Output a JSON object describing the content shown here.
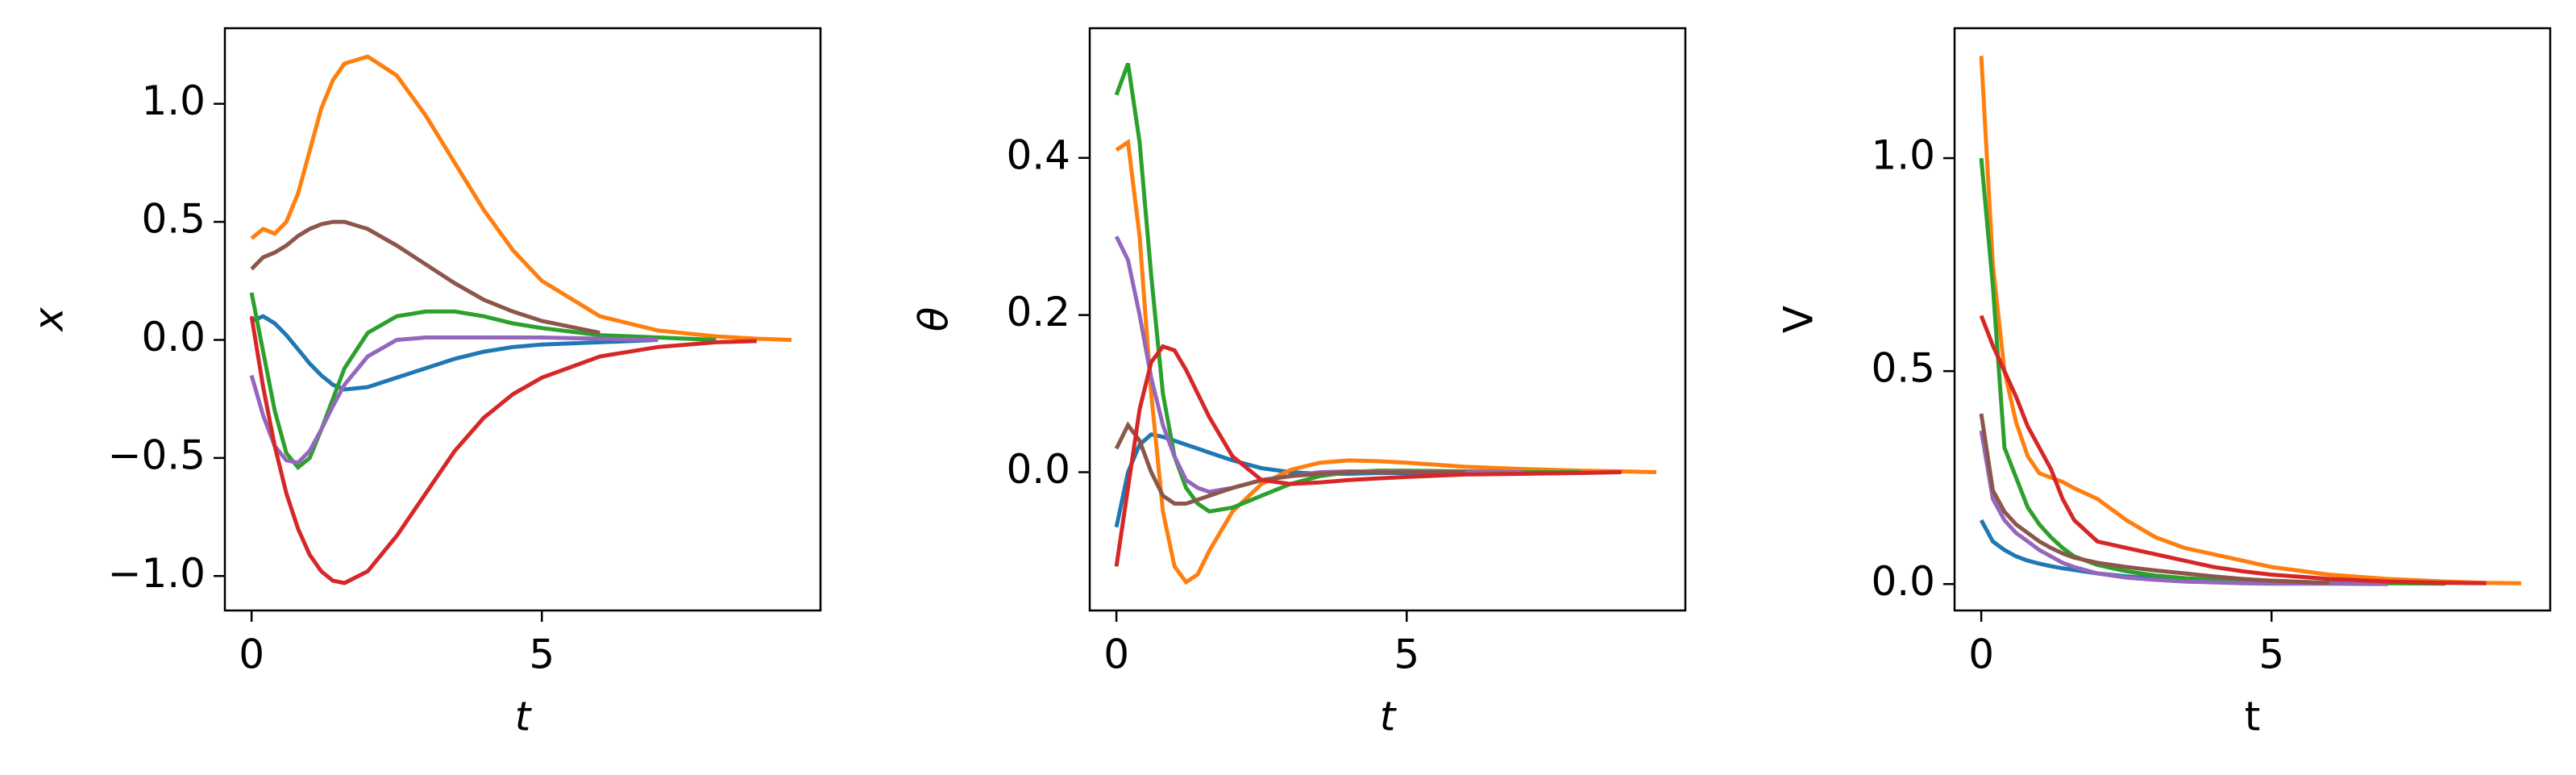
{
  "chart_data": [
    {
      "type": "line",
      "y_label": "x",
      "x_label": "t",
      "x": [
        0,
        0.2,
        0.4,
        0.6,
        0.8,
        1,
        1.2,
        1.4,
        1.6,
        2,
        2.5,
        3,
        3.5,
        4,
        4.5,
        5,
        6,
        7,
        8,
        8.7,
        9.3
      ],
      "xlim": [
        -0.46,
        9.8
      ],
      "xticks": [
        0,
        5
      ],
      "ylim": [
        -1.146,
        1.32
      ],
      "yticks": [
        {
          "value": -1.0,
          "label": "−1.0"
        },
        {
          "value": -0.5,
          "label": "−0.5"
        },
        {
          "value": 0.0,
          "label": "0.0"
        },
        {
          "value": 0.5,
          "label": "0.5"
        },
        {
          "value": 1.0,
          "label": "1.0"
        }
      ],
      "series": [
        {
          "color": "#1f77b4",
          "values": [
            0.08,
            0.1,
            0.07,
            0.02,
            -0.04,
            -0.1,
            -0.15,
            -0.19,
            -0.21,
            -0.2,
            -0.16,
            -0.12,
            -0.08,
            -0.05,
            -0.03,
            -0.02,
            -0.01,
            0,
            null,
            null,
            null
          ]
        },
        {
          "color": "#ff7f0e",
          "values": [
            0.43,
            0.47,
            0.45,
            0.5,
            0.62,
            0.8,
            0.98,
            1.1,
            1.17,
            1.2,
            1.12,
            0.95,
            0.75,
            0.55,
            0.38,
            0.25,
            0.1,
            0.04,
            0.015,
            0.005,
            0
          ]
        },
        {
          "color": "#2ca02c",
          "values": [
            0.2,
            -0.05,
            -0.3,
            -0.48,
            -0.54,
            -0.5,
            -0.38,
            -0.25,
            -0.12,
            0.03,
            0.1,
            0.12,
            0.12,
            0.1,
            0.07,
            0.05,
            0.02,
            0.01,
            0,
            null,
            null
          ]
        },
        {
          "color": "#9467bd",
          "values": [
            -0.15,
            -0.32,
            -0.45,
            -0.51,
            -0.52,
            -0.47,
            -0.38,
            -0.28,
            -0.19,
            -0.07,
            0,
            0.01,
            0.01,
            0.01,
            0.01,
            0.01,
            0.005,
            0,
            null,
            null,
            null
          ]
        },
        {
          "color": "#8c564b",
          "values": [
            0.3,
            0.35,
            0.37,
            0.4,
            0.44,
            0.47,
            0.49,
            0.5,
            0.5,
            0.47,
            0.4,
            0.32,
            0.24,
            0.17,
            0.12,
            0.08,
            0.03,
            null,
            null,
            null,
            null
          ]
        },
        {
          "color": "#d62728",
          "values": [
            0.1,
            -0.2,
            -0.45,
            -0.65,
            -0.8,
            -0.91,
            -0.98,
            -1.02,
            -1.03,
            -0.98,
            -0.83,
            -0.65,
            -0.47,
            -0.33,
            -0.23,
            -0.16,
            -0.07,
            -0.03,
            -0.01,
            -0.005,
            null
          ]
        }
      ]
    },
    {
      "type": "line",
      "y_label": "θ",
      "x_label": "t",
      "x": [
        0,
        0.2,
        0.4,
        0.6,
        0.8,
        1,
        1.2,
        1.4,
        1.6,
        2,
        2.5,
        3,
        3.5,
        4,
        4.5,
        5,
        6,
        7,
        8,
        8.7,
        9.3
      ],
      "xlim": [
        -0.46,
        9.8
      ],
      "xticks": [
        0,
        5
      ],
      "ylim": [
        -0.176,
        0.565
      ],
      "yticks": [
        {
          "value": 0.0,
          "label": "0.0"
        },
        {
          "value": 0.2,
          "label": "0.2"
        },
        {
          "value": 0.4,
          "label": "0.4"
        }
      ],
      "series": [
        {
          "color": "#1f77b4",
          "values": [
            -0.07,
            0,
            0.035,
            0.048,
            0.045,
            0.04,
            0.035,
            0.03,
            0.025,
            0.015,
            0.005,
            0,
            -0.002,
            -0.002,
            -0.001,
            -0.001,
            0,
            0,
            null,
            null,
            null
          ]
        },
        {
          "color": "#ff7f0e",
          "values": [
            0.41,
            0.42,
            0.3,
            0.1,
            -0.05,
            -0.12,
            -0.14,
            -0.13,
            -0.1,
            -0.05,
            -0.015,
            0.003,
            0.012,
            0.015,
            0.014,
            0.012,
            0.007,
            0.004,
            0.002,
            0.001,
            0
          ]
        },
        {
          "color": "#2ca02c",
          "values": [
            0.48,
            0.52,
            0.42,
            0.25,
            0.1,
            0.02,
            -0.02,
            -0.04,
            -0.05,
            -0.045,
            -0.03,
            -0.015,
            -0.005,
            0,
            0.002,
            0.002,
            0.001,
            0,
            0,
            null,
            null
          ]
        },
        {
          "color": "#9467bd",
          "values": [
            0.3,
            0.27,
            0.2,
            0.12,
            0.06,
            0.02,
            -0.01,
            -0.02,
            -0.025,
            -0.02,
            -0.01,
            -0.005,
            0,
            0.001,
            0.001,
            0.001,
            0,
            0,
            null,
            null,
            null
          ]
        },
        {
          "color": "#8c564b",
          "values": [
            0.03,
            0.06,
            0.04,
            0,
            -0.03,
            -0.04,
            -0.04,
            -0.035,
            -0.03,
            -0.02,
            -0.01,
            -0.005,
            -0.002,
            0,
            0,
            0,
            0,
            null,
            null,
            null,
            null
          ]
        },
        {
          "color": "#d62728",
          "values": [
            -0.12,
            -0.02,
            0.08,
            0.14,
            0.16,
            0.155,
            0.13,
            0.1,
            0.07,
            0.02,
            -0.01,
            -0.015,
            -0.013,
            -0.01,
            -0.008,
            -0.006,
            -0.003,
            -0.002,
            -0.001,
            0,
            null
          ]
        }
      ]
    },
    {
      "type": "line",
      "y_label": "V",
      "x_label": "t",
      "x": [
        0,
        0.2,
        0.4,
        0.6,
        0.8,
        1,
        1.2,
        1.4,
        1.6,
        2,
        2.5,
        3,
        3.5,
        4,
        4.5,
        5,
        6,
        7,
        8,
        8.7,
        9.3
      ],
      "xlim": [
        -0.46,
        9.8
      ],
      "xticks": [
        0,
        5
      ],
      "ylim": [
        -0.062,
        1.305
      ],
      "yticks": [
        {
          "value": 0.0,
          "label": "0.0"
        },
        {
          "value": 0.5,
          "label": "0.5"
        },
        {
          "value": 1.0,
          "label": "1.0"
        }
      ],
      "series": [
        {
          "color": "#1f77b4",
          "values": [
            0.15,
            0.1,
            0.08,
            0.065,
            0.055,
            0.048,
            0.042,
            0.037,
            0.033,
            0.025,
            0.018,
            0.013,
            0.009,
            0.006,
            0.004,
            0.003,
            0.002,
            0.001,
            null,
            null,
            null
          ]
        },
        {
          "color": "#ff7f0e",
          "values": [
            1.24,
            0.75,
            0.5,
            0.38,
            0.3,
            0.26,
            0.25,
            0.24,
            0.225,
            0.2,
            0.15,
            0.11,
            0.085,
            0.07,
            0.055,
            0.04,
            0.022,
            0.012,
            0.006,
            0.003,
            0.002
          ]
        },
        {
          "color": "#2ca02c",
          "values": [
            1.0,
            0.7,
            0.32,
            0.25,
            0.18,
            0.14,
            0.11,
            0.085,
            0.065,
            0.045,
            0.03,
            0.02,
            0.014,
            0.01,
            0.007,
            0.005,
            0.003,
            0.002,
            0.001,
            null,
            null
          ]
        },
        {
          "color": "#9467bd",
          "values": [
            0.36,
            0.2,
            0.15,
            0.12,
            0.1,
            0.08,
            0.065,
            0.05,
            0.04,
            0.025,
            0.015,
            0.01,
            0.006,
            0.004,
            0.002,
            0.001,
            0.001,
            0,
            null,
            null,
            null
          ]
        },
        {
          "color": "#8c564b",
          "values": [
            0.4,
            0.22,
            0.17,
            0.14,
            0.12,
            0.1,
            0.085,
            0.072,
            0.062,
            0.05,
            0.04,
            0.032,
            0.025,
            0.018,
            0.012,
            0.008,
            0.003,
            null,
            null,
            null,
            null
          ]
        },
        {
          "color": "#d62728",
          "values": [
            0.63,
            0.56,
            0.5,
            0.44,
            0.37,
            0.32,
            0.27,
            0.2,
            0.15,
            0.1,
            0.085,
            0.07,
            0.055,
            0.04,
            0.03,
            0.022,
            0.012,
            0.006,
            0.003,
            0.002,
            null
          ]
        }
      ]
    }
  ]
}
